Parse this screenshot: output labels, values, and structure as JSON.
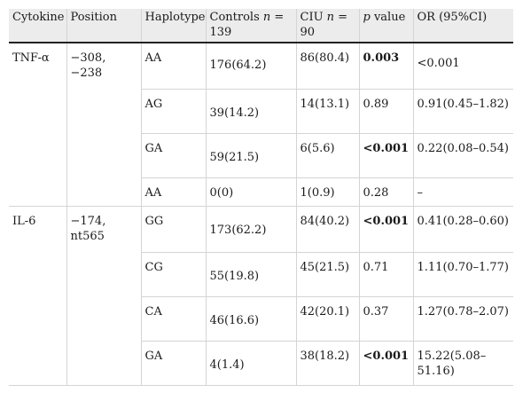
{
  "table": {
    "headers": {
      "cytokine": "Cytokine",
      "position": "Position",
      "haplotype": "Haplotype",
      "controls_prefix": "Controls ",
      "controls_n": "n",
      "controls_suffix": " = 139",
      "ciu_prefix": "CIU ",
      "ciu_n": "n",
      "ciu_suffix": " = 90",
      "pvalue_p": "p",
      "pvalue_suffix": " value",
      "or": "OR (95%CI)"
    },
    "groups": [
      {
        "cytokine": "TNF-α",
        "position": "−308, −238",
        "rows": [
          {
            "haplotype": "AA",
            "controls": "176(64.2)",
            "ciu": "86(80.4)",
            "pvalue": "0.003",
            "pvalue_bold": true,
            "or": "<0.001"
          },
          {
            "haplotype": "AG",
            "controls": "39(14.2)",
            "ciu": "14(13.1)",
            "pvalue": "0.89",
            "pvalue_bold": false,
            "or": "0.91(0.45–1.82)"
          },
          {
            "haplotype": "GA",
            "controls": "59(21.5)",
            "ciu": "6(5.6)",
            "pvalue": "<0.001",
            "pvalue_bold": true,
            "or": "0.22(0.08–0.54)"
          },
          {
            "haplotype": "AA",
            "controls": "0(0)",
            "ciu": "1(0.9)",
            "pvalue": "0.28",
            "pvalue_bold": false,
            "or": "–"
          }
        ]
      },
      {
        "cytokine": "IL-6",
        "position": "−174, nt565",
        "rows": [
          {
            "haplotype": "GG",
            "controls": "173(62.2)",
            "ciu": "84(40.2)",
            "pvalue": "<0.001",
            "pvalue_bold": true,
            "or": "0.41(0.28–0.60)"
          },
          {
            "haplotype": "CG",
            "controls": "55(19.8)",
            "ciu": "45(21.5)",
            "pvalue": "0.71",
            "pvalue_bold": false,
            "or": "1.11(0.70–1.77)"
          },
          {
            "haplotype": "CA",
            "controls": "46(16.6)",
            "ciu": "42(20.1)",
            "pvalue": "0.37",
            "pvalue_bold": false,
            "or": "1.27(0.78–2.07)"
          },
          {
            "haplotype": "GA",
            "controls": "4(1.4)",
            "ciu": "38(18.2)",
            "pvalue": "<0.001",
            "pvalue_bold": true,
            "or": "15.22(5.08–51.16)"
          }
        ]
      }
    ]
  }
}
